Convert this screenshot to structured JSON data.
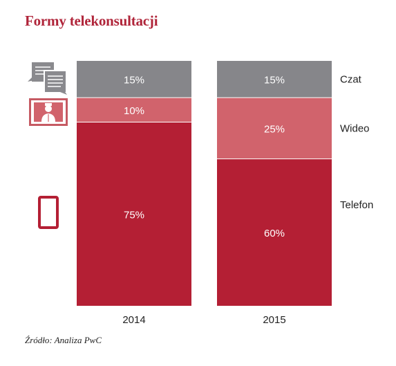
{
  "title": "Formy telekonsultacji",
  "source": "Źródło: Analiza PwC",
  "colors": {
    "Czat": "#86868a",
    "Wideo": "#d1636c",
    "Telefon": "#b41f34",
    "title": "#b0253a"
  },
  "icons": [
    "chat-icon",
    "video-doctor-icon",
    "phone-icon"
  ],
  "chart_data": {
    "type": "bar",
    "stacked": true,
    "orientation": "vertical",
    "categories": [
      "2014",
      "2015"
    ],
    "series": [
      {
        "name": "Telefon",
        "values": [
          75,
          60
        ],
        "labels": [
          "75%",
          "60%"
        ]
      },
      {
        "name": "Wideo",
        "values": [
          10,
          25
        ],
        "labels": [
          "10%",
          "25%"
        ]
      },
      {
        "name": "Czat",
        "values": [
          15,
          15
        ],
        "labels": [
          "15%",
          "15%"
        ]
      }
    ],
    "ylim": [
      0,
      100
    ],
    "legend": "right",
    "grid": false,
    "title": "Formy telekonsultacji"
  }
}
